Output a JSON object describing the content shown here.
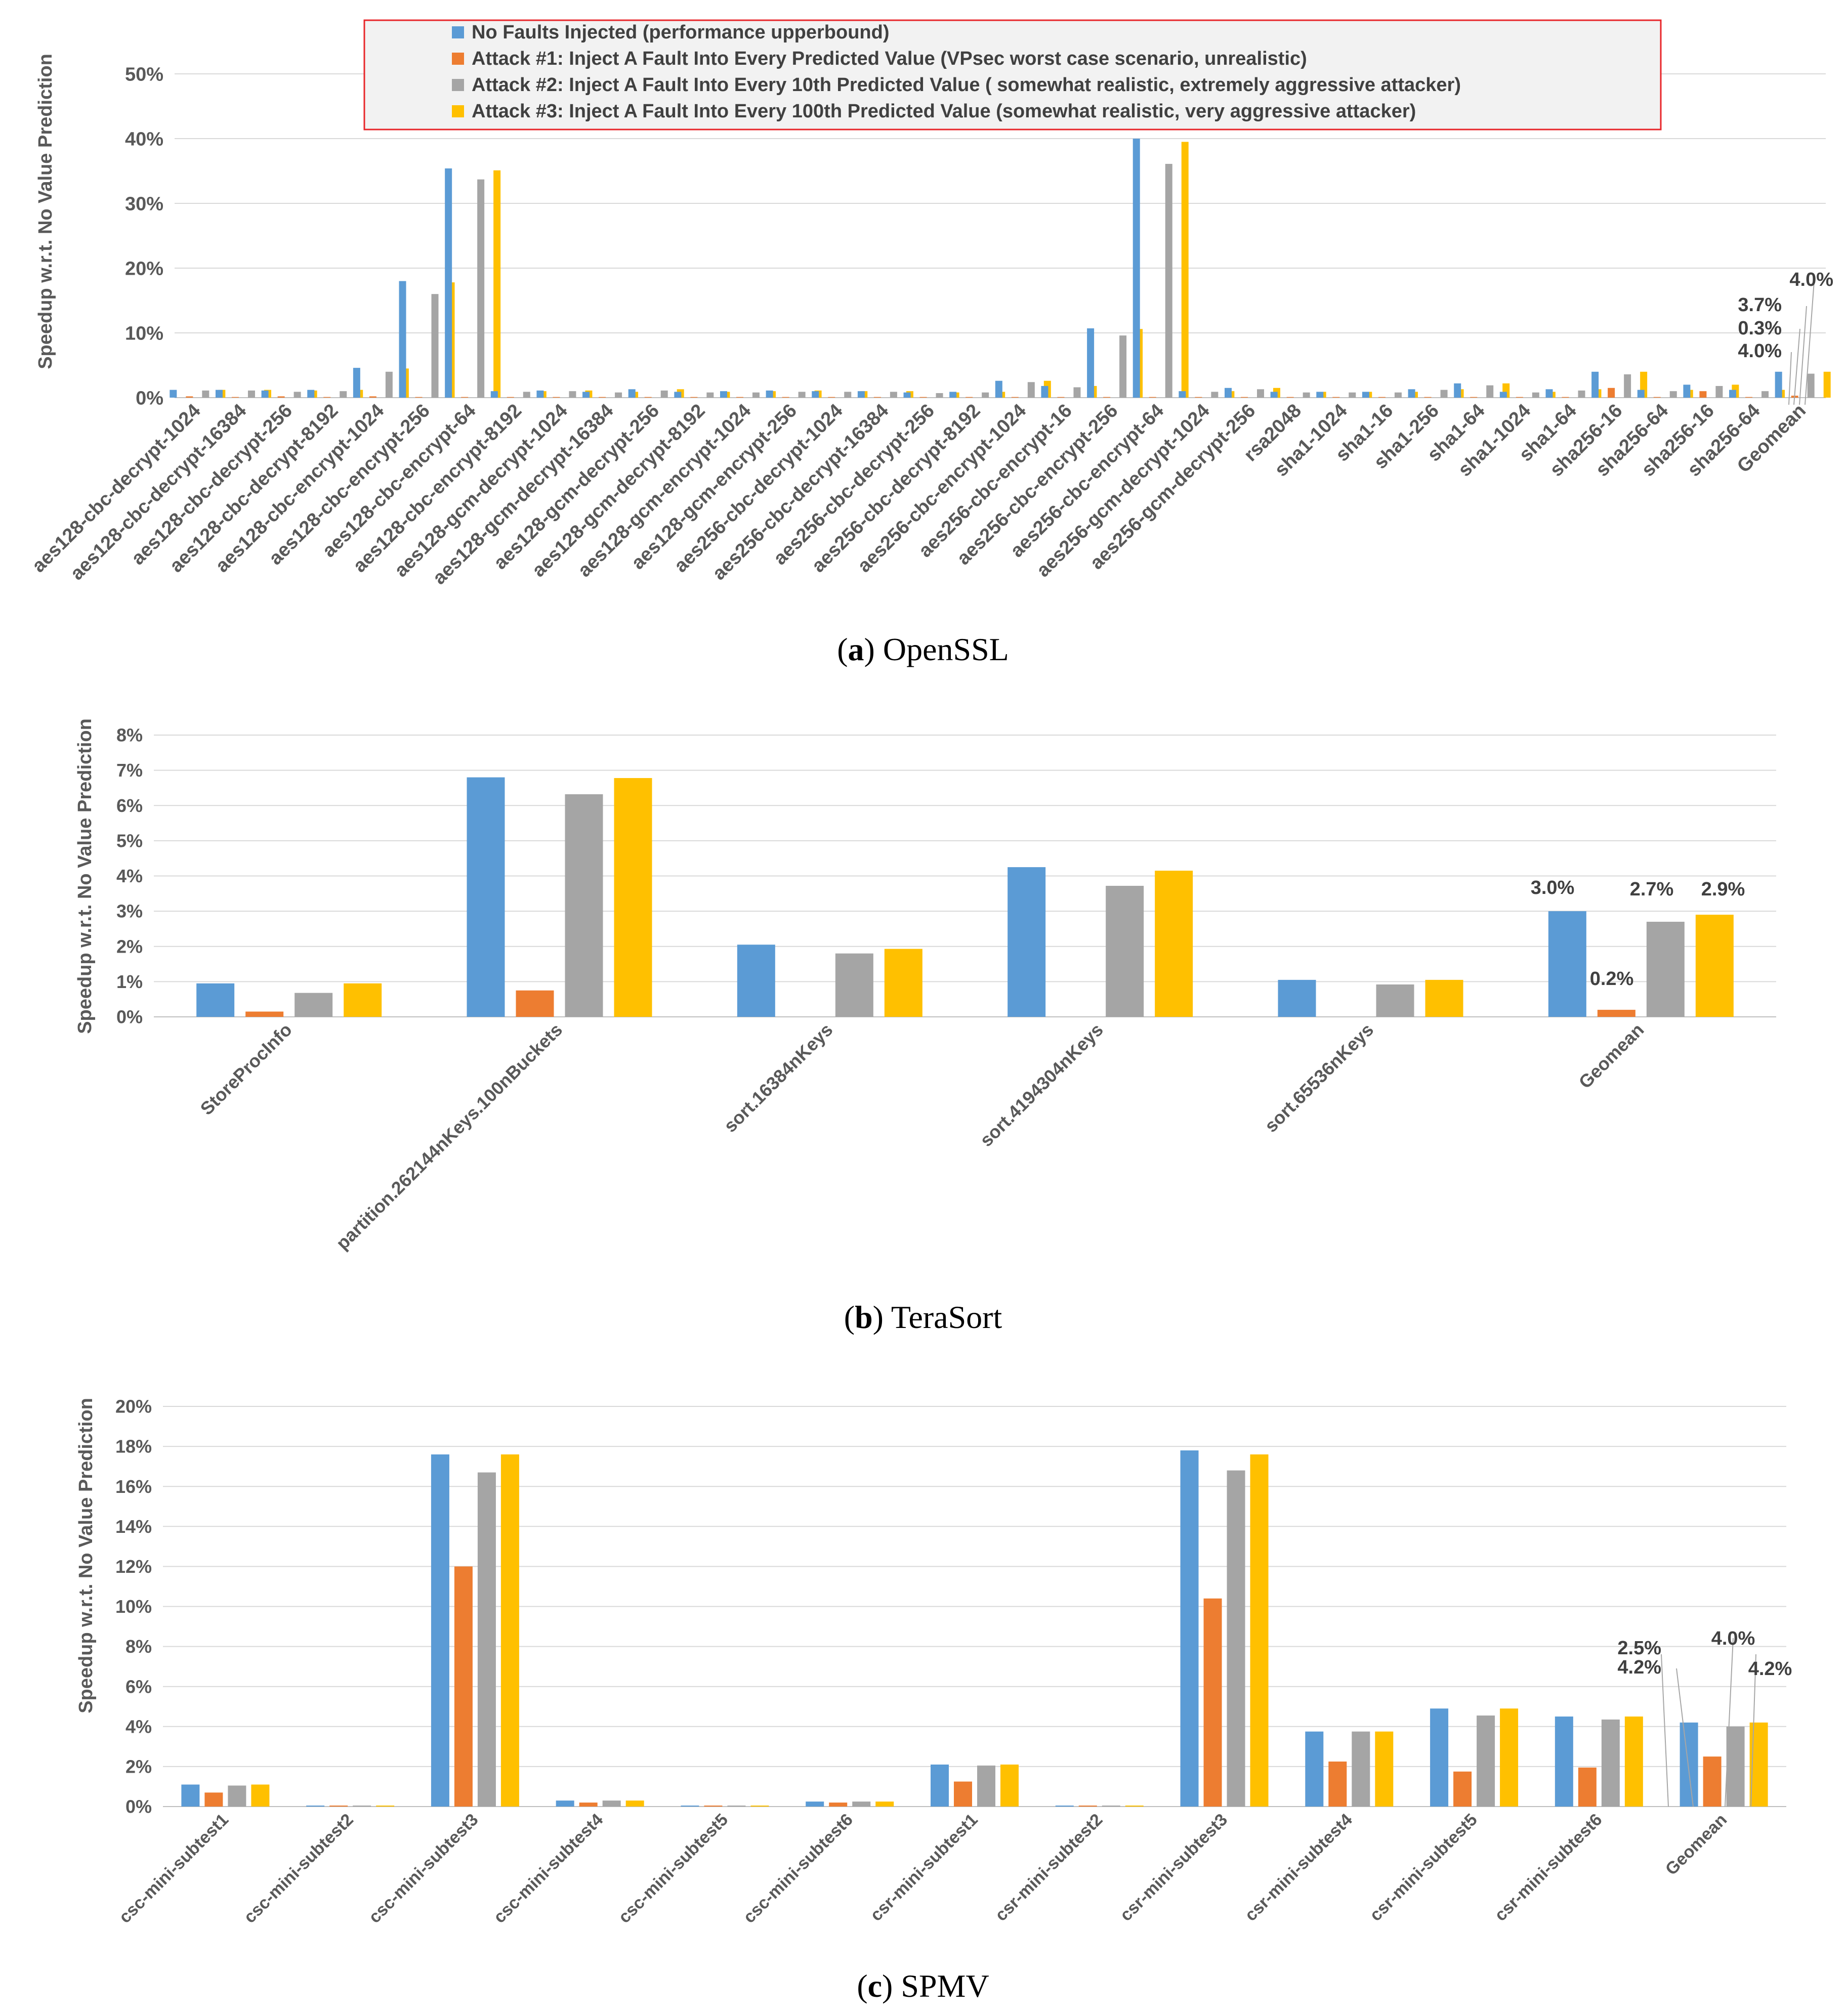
{
  "colors": {
    "s0": "#5B9BD5",
    "s1": "#ED7D31",
    "s2": "#A5A5A5",
    "s3": "#FFC000",
    "grid": "#D9D9D9",
    "axis_text": "#595959",
    "label_text": "#404040",
    "legend_border": "#E8262A",
    "legend_bg": "#F2F2F2"
  },
  "legend": {
    "entries": [
      "No Faults Injected (performance upperbound)",
      "Attack #1: Inject A Fault Into Every Predicted Value (VPsec worst case scenario, unrealistic)",
      "Attack #2: Inject A Fault Into Every 10th Predicted Value ( somewhat realistic, extremely aggressive attacker)",
      "Attack #3: Inject A Fault Into Every 100th Predicted Value  (somewhat realistic, very aggressive attacker)"
    ]
  },
  "chart_data": [
    {
      "type": "bar",
      "caption_letter": "a",
      "caption_text": "OpenSSL",
      "ylabel": "Speedup w.r.t. No Value Prediction",
      "ylim": [
        0,
        50
      ],
      "yticks": [
        "0%",
        "10%",
        "20%",
        "30%",
        "40%",
        "50%"
      ],
      "grid": true,
      "categories": [
        "aes128-cbc-decrypt-1024",
        "aes128-cbc-decrypt-16384",
        "aes128-cbc-decrypt-256",
        "aes128-cbc-decrypt-8192",
        "aes128-cbc-encrypt-1024",
        "aes128-cbc-encrypt-256",
        "aes128-cbc-encrypt-64",
        "aes128-cbc-encrypt-8192",
        "aes128-gcm-decrypt-1024",
        "aes128-gcm-decrypt-16384",
        "aes128-gcm-decrypt-256",
        "aes128-gcm-decrypt-8192",
        "aes128-gcm-encrypt-1024",
        "aes128-gcm-encrypt-256",
        "aes256-cbc-decrypt-1024",
        "aes256-cbc-decrypt-16384",
        "aes256-cbc-decrypt-256",
        "aes256-cbc-decrypt-8192",
        "aes256-cbc-encrypt-1024",
        "aes256-cbc-encrypt-16",
        "aes256-cbc-encrypt-256",
        "aes256-cbc-encrypt-64",
        "aes256-gcm-decrypt-1024",
        "aes256-gcm-decrypt-256",
        "rsa2048",
        "sha1-1024",
        "sha1-16",
        "sha1-256",
        "sha1-64",
        "sha1-1024",
        "sha1-64",
        "sha256-16",
        "sha256-64",
        "sha256-16",
        "sha256-64",
        "Geomean"
      ],
      "series": [
        {
          "name": "No Faults Injected (performance upperbound)",
          "values": [
            1.2,
            1.2,
            1.1,
            1.2,
            4.6,
            18.0,
            35.4,
            1.0,
            1.1,
            0.9,
            1.3,
            0.9,
            1.0,
            1.1,
            1.0,
            1.0,
            0.8,
            0.9,
            2.6,
            1.8,
            10.7,
            40.0,
            1.0,
            1.5,
            0.9,
            0.9,
            0.9,
            1.3,
            2.2,
            0.9,
            1.3,
            4.0,
            1.2,
            2.0,
            1.2,
            4.0
          ]
        },
        {
          "name": "Attack #1: Inject A Fault Into Every Predicted Value (VPsec worst case scenario, unrealistic)",
          "values": [
            0.2,
            0.1,
            0.2,
            0.1,
            0.2,
            0.1,
            0.1,
            0.1,
            0.1,
            0.1,
            0.1,
            0.1,
            0.1,
            0.1,
            0.1,
            0.1,
            0.1,
            0.1,
            0.1,
            0.1,
            0.1,
            0.1,
            0.1,
            0.1,
            0.1,
            0.1,
            0.1,
            0.1,
            0.1,
            0.1,
            0.1,
            1.5,
            0.1,
            1.0,
            0.1,
            0.3
          ]
        },
        {
          "name": "Attack #2: Inject A Fault Into Every 10th Predicted Value ( somewhat realistic, extremely aggressive attacker)",
          "values": [
            1.1,
            1.1,
            0.9,
            1.0,
            4.0,
            16.0,
            33.7,
            0.9,
            1.0,
            0.8,
            1.1,
            0.8,
            0.8,
            0.9,
            0.9,
            0.9,
            0.7,
            0.8,
            2.4,
            1.6,
            9.6,
            36.1,
            0.9,
            1.3,
            0.8,
            0.8,
            0.8,
            1.2,
            1.9,
            0.8,
            1.1,
            3.6,
            1.0,
            1.8,
            1.0,
            3.7
          ]
        },
        {
          "name": "Attack #3: Inject A Fault Into Every 100th Predicted Value  (somewhat realistic, very aggressive attacker)",
          "values": [
            1.2,
            1.2,
            1.1,
            1.2,
            4.5,
            17.8,
            35.1,
            1.0,
            1.1,
            0.9,
            1.3,
            0.9,
            1.0,
            1.1,
            1.0,
            1.0,
            0.8,
            0.9,
            2.6,
            1.8,
            10.6,
            39.5,
            1.0,
            1.5,
            0.9,
            0.9,
            0.9,
            1.3,
            2.2,
            0.9,
            1.3,
            4.0,
            1.2,
            2.0,
            1.2,
            4.0
          ]
        }
      ],
      "annotations": [
        "4.0%",
        "0.3%",
        "3.7%",
        "4.0%"
      ]
    },
    {
      "type": "bar",
      "caption_letter": "b",
      "caption_text": "TeraSort",
      "ylabel": "Speedup w.r.t. No Value Prediction",
      "ylim": [
        0,
        8
      ],
      "yticks": [
        "0%",
        "1%",
        "2%",
        "3%",
        "4%",
        "5%",
        "6%",
        "7%",
        "8%"
      ],
      "grid": true,
      "categories": [
        "StoreProcInfo",
        "partition.262144nKeys.100nBuckets",
        "sort.16384nKeys",
        "sort.4194304nKeys",
        "sort.65536nKeys",
        "Geomean"
      ],
      "series": [
        {
          "name": "No Faults Injected (performance upperbound)",
          "values": [
            0.95,
            6.8,
            2.05,
            4.25,
            1.05,
            3.0
          ]
        },
        {
          "name": "Attack #1: Inject A Fault Into Every Predicted Value (VPsec worst case scenario, unrealistic)",
          "values": [
            0.15,
            0.75,
            0.0,
            0.0,
            0.0,
            0.2
          ]
        },
        {
          "name": "Attack #2: Inject A Fault Into Every 10th Predicted Value ( somewhat realistic, extremely aggressive attacker)",
          "values": [
            0.68,
            6.32,
            1.8,
            3.72,
            0.92,
            2.7
          ]
        },
        {
          "name": "Attack #3: Inject A Fault Into Every 100th Predicted Value  (somewhat realistic, very aggressive attacker)",
          "values": [
            0.95,
            6.78,
            1.93,
            4.15,
            1.05,
            2.9
          ]
        }
      ],
      "annotations": [
        "3.0%",
        "0.2%",
        "2.7%",
        "2.9%"
      ]
    },
    {
      "type": "bar",
      "caption_letter": "c",
      "caption_text": "SPMV",
      "ylabel": "Speedup w.r.t. No Value Prediction",
      "ylim": [
        0,
        20
      ],
      "yticks": [
        "0%",
        "2%",
        "4%",
        "6%",
        "8%",
        "10%",
        "12%",
        "14%",
        "16%",
        "18%",
        "20%"
      ],
      "grid": true,
      "categories": [
        "csc-mini-subtest1",
        "csc-mini-subtest2",
        "csc-mini-subtest3",
        "csc-mini-subtest4",
        "csc-mini-subtest5",
        "csc-mini-subtest6",
        "csr-mini-subtest1",
        "csr-mini-subtest2",
        "csr-mini-subtest3",
        "csr-mini-subtest4",
        "csr-mini-subtest5",
        "csr-mini-subtest6",
        "Geomean"
      ],
      "series": [
        {
          "name": "No Faults Injected (performance upperbound)",
          "values": [
            1.1,
            0.05,
            17.6,
            0.3,
            0.05,
            0.25,
            2.1,
            0.05,
            17.8,
            3.75,
            4.9,
            4.5,
            4.2
          ]
        },
        {
          "name": "Attack #1: Inject A Fault Into Every Predicted Value (VPsec worst case scenario, unrealistic)",
          "values": [
            0.7,
            0.05,
            12.0,
            0.2,
            0.05,
            0.2,
            1.25,
            0.05,
            10.4,
            2.25,
            1.75,
            1.95,
            2.5
          ]
        },
        {
          "name": "Attack #2: Inject A Fault Into Every 10th Predicted Value ( somewhat realistic, extremely aggressive attacker)",
          "values": [
            1.05,
            0.05,
            16.7,
            0.3,
            0.05,
            0.25,
            2.05,
            0.05,
            16.8,
            3.75,
            4.55,
            4.35,
            4.0
          ]
        },
        {
          "name": "Attack #3: Inject A Fault Into Every 100th Predicted Value  (somewhat realistic, very aggressive attacker)",
          "values": [
            1.1,
            0.05,
            17.6,
            0.3,
            0.05,
            0.25,
            2.1,
            0.05,
            17.6,
            3.75,
            4.9,
            4.5,
            4.2
          ]
        }
      ],
      "annotations": [
        "4.2%",
        "2.5%",
        "4.0%",
        "4.2%"
      ]
    }
  ]
}
